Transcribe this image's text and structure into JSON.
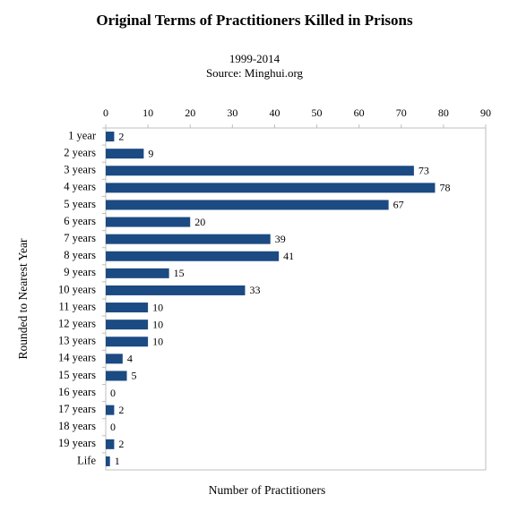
{
  "chart_data": {
    "type": "bar",
    "orientation": "horizontal",
    "title": "Original Terms of Practitioners Killed in Prisons",
    "subtitle": "1999-2014",
    "source": "Source: Minghui.org",
    "x_label": "Number of Practitioners",
    "y_label": "Rounded to Nearest Year",
    "value_axis_position": "top",
    "categories": [
      "1 year",
      "2 years",
      "3 years",
      "4 years",
      "5 years",
      "6 years",
      "7 years",
      "8 years",
      "9 years",
      "10 years",
      "11 years",
      "12 years",
      "13 years",
      "14 years",
      "15 years",
      "16 years",
      "17 years",
      "18 years",
      "19 years",
      "Life"
    ],
    "values": [
      2,
      9,
      73,
      78,
      67,
      20,
      39,
      41,
      15,
      33,
      10,
      10,
      10,
      4,
      5,
      0,
      2,
      0,
      2,
      1
    ],
    "color": "#1c4a82",
    "xlim": [
      0,
      90
    ],
    "xticks": [
      0,
      10,
      20,
      30,
      40,
      50,
      60,
      70,
      80,
      90
    ],
    "grid": false
  }
}
